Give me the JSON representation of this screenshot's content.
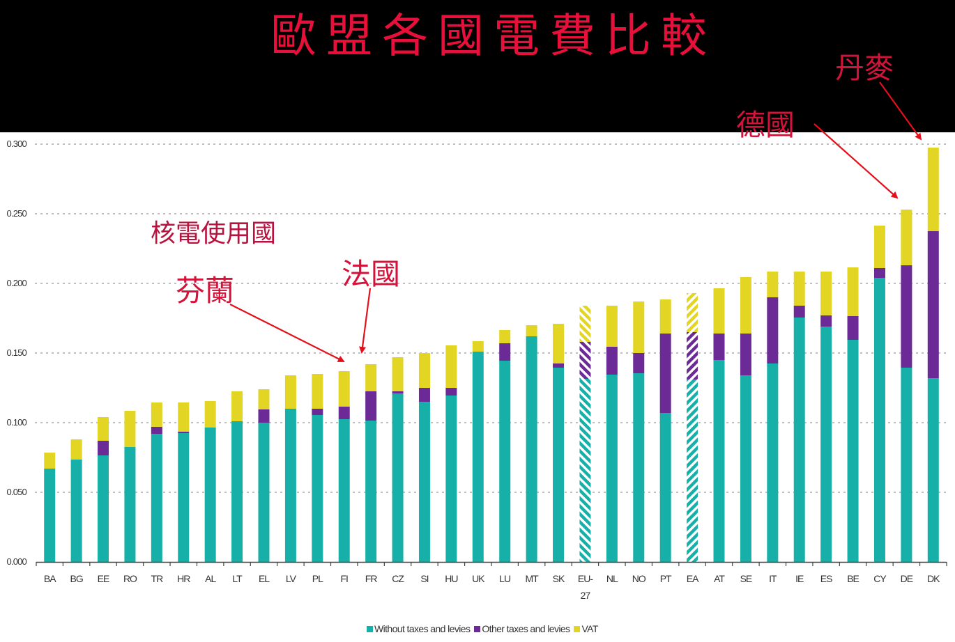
{
  "header": {
    "title": "歐盟各國電費比較"
  },
  "annotations": {
    "denmark": "丹麥",
    "germany": "德國",
    "nuclear_users": "核電使用國",
    "finland": "芬蘭",
    "france": "法國"
  },
  "colors": {
    "without_taxes": "#17b0a8",
    "other_taxes": "#6b2a96",
    "vat": "#e2d524",
    "annotation": "#d4123a",
    "header_bg": "#000000",
    "grid": "#bfbfbf"
  },
  "chart_data": {
    "type": "bar",
    "stacked": true,
    "title": "歐盟各國電費比較",
    "xlabel": "",
    "ylabel": "",
    "ylim": [
      0,
      0.3
    ],
    "yticks": [
      "0.000",
      "0.050",
      "0.100",
      "0.150",
      "0.200",
      "0.250",
      "0.300"
    ],
    "grid": true,
    "legend_position": "bottom-center",
    "categories": [
      "BA",
      "BG",
      "EE",
      "RO",
      "TR",
      "HR",
      "AL",
      "LT",
      "EL",
      "LV",
      "PL",
      "FI",
      "FR",
      "CZ",
      "SI",
      "HU",
      "UK",
      "LU",
      "MT",
      "SK",
      "EU-27",
      "NL",
      "NO",
      "PT",
      "EA",
      "AT",
      "SE",
      "IT",
      "IE",
      "ES",
      "BE",
      "CY",
      "DE",
      "DK"
    ],
    "hatched_categories": [
      "EU-27",
      "EA"
    ],
    "series": [
      {
        "name": "Without taxes and levies",
        "values": [
          0.067,
          0.0735,
          0.0765,
          0.0825,
          0.092,
          0.0925,
          0.0965,
          0.101,
          0.1,
          0.11,
          0.1055,
          0.1025,
          0.1015,
          0.121,
          0.115,
          0.1195,
          0.151,
          0.1445,
          0.162,
          0.1395,
          0.1315,
          0.1345,
          0.1355,
          0.107,
          0.131,
          0.145,
          0.134,
          0.1425,
          0.1755,
          0.169,
          0.1595,
          0.204,
          0.1395,
          0.132
        ]
      },
      {
        "name": "Other taxes and levies",
        "values": [
          0.0,
          0.0,
          0.0105,
          0.0,
          0.005,
          0.001,
          0.0,
          0.0,
          0.0095,
          0.0,
          0.0045,
          0.009,
          0.021,
          0.0015,
          0.01,
          0.0055,
          0.0,
          0.0125,
          0.0,
          0.003,
          0.0265,
          0.02,
          0.0145,
          0.057,
          0.034,
          0.019,
          0.03,
          0.0475,
          0.0085,
          0.008,
          0.017,
          0.007,
          0.0735,
          0.1055
        ]
      },
      {
        "name": "VAT",
        "values": [
          0.0115,
          0.0145,
          0.017,
          0.026,
          0.0175,
          0.021,
          0.019,
          0.0215,
          0.0145,
          0.024,
          0.025,
          0.0255,
          0.0195,
          0.0245,
          0.025,
          0.0305,
          0.0075,
          0.0095,
          0.008,
          0.0285,
          0.026,
          0.0295,
          0.037,
          0.0245,
          0.028,
          0.0325,
          0.0405,
          0.0185,
          0.0245,
          0.0315,
          0.035,
          0.0305,
          0.04,
          0.06
        ]
      }
    ],
    "annotations": [
      {
        "text": "丹麥",
        "points_to": "DK"
      },
      {
        "text": "德國",
        "points_to": "DE"
      },
      {
        "text": "核電使用國",
        "points_to": ""
      },
      {
        "text": "芬蘭",
        "points_to": "FI"
      },
      {
        "text": "法國",
        "points_to": "FR"
      }
    ]
  }
}
